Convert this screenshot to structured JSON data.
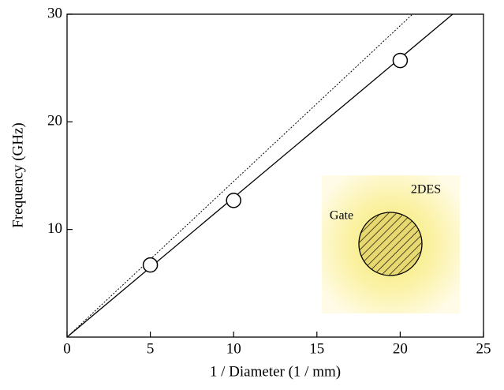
{
  "chart_data": {
    "type": "scatter",
    "xlabel": "1 / Diameter (1 / mm)",
    "ylabel": "Frequency (GHz)",
    "xlim": [
      0,
      25
    ],
    "xticks": [
      0,
      5,
      10,
      15,
      20,
      25
    ],
    "ylim": [
      0,
      30
    ],
    "yticks": [
      10,
      20,
      30
    ],
    "series": [
      {
        "type": "line",
        "style": "dotted",
        "color": "#000000",
        "x": [
          0,
          20.74
        ],
        "values": [
          0,
          30
        ]
      },
      {
        "type": "line",
        "style": "solid",
        "color": "#000000",
        "x": [
          0,
          23.15
        ],
        "values": [
          0,
          30
        ]
      },
      {
        "type": "scatter",
        "color": "#000000",
        "x": [
          5,
          10,
          20
        ],
        "values": [
          6.7,
          12.7,
          25.7
        ]
      }
    ],
    "annotations": [
      {
        "text": "Gate"
      },
      {
        "text": "2DES"
      }
    ]
  }
}
